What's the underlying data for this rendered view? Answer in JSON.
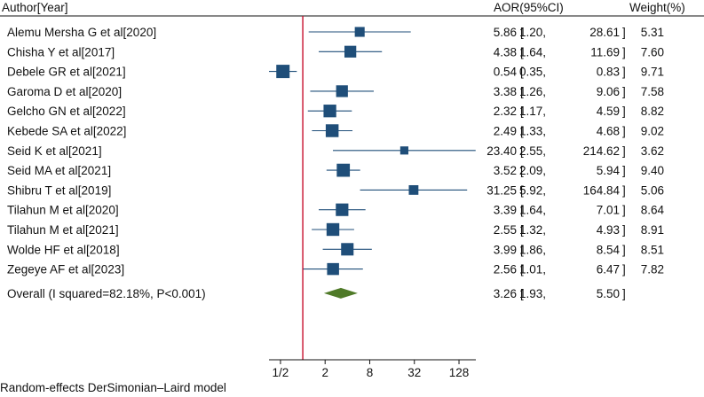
{
  "chart_data": {
    "type": "forest",
    "title": "",
    "headers": {
      "study": "Author[Year]",
      "effect": "AOR(95%CI)",
      "weight": "Weight(%)"
    },
    "x_scale": "log2",
    "xlim": [
      0.35,
      216
    ],
    "null_line": 1.0,
    "x_ticks": [
      {
        "value": 0.5,
        "label": "1/2"
      },
      {
        "value": 2,
        "label": "2"
      },
      {
        "value": 8,
        "label": "8"
      },
      {
        "value": 32,
        "label": "32"
      },
      {
        "value": 128,
        "label": "128"
      }
    ],
    "studies": [
      {
        "label": "Alemu Mersha G et al[2020]",
        "est": 5.86,
        "lo": 1.2,
        "hi": 28.61,
        "weight": 5.31,
        "est_txt": "5.86",
        "lo_txt": "1.20",
        "hi_txt": "28.61",
        "w_txt": "5.31"
      },
      {
        "label": "Chisha Y et al[2017]",
        "est": 4.38,
        "lo": 1.64,
        "hi": 11.69,
        "weight": 7.6,
        "est_txt": "4.38",
        "lo_txt": "1.64",
        "hi_txt": "11.69",
        "w_txt": "7.60"
      },
      {
        "label": "Debele GR et al[2021]",
        "est": 0.54,
        "lo": 0.35,
        "hi": 0.83,
        "weight": 9.71,
        "est_txt": "0.54",
        "lo_txt": "0.35",
        "hi_txt": "0.83",
        "w_txt": "9.71"
      },
      {
        "label": "Garoma D et al[2020]",
        "est": 3.38,
        "lo": 1.26,
        "hi": 9.06,
        "weight": 7.58,
        "est_txt": "3.38",
        "lo_txt": "1.26",
        "hi_txt": "9.06",
        "w_txt": "7.58"
      },
      {
        "label": "Gelcho GN et al[2022]",
        "est": 2.32,
        "lo": 1.17,
        "hi": 4.59,
        "weight": 8.82,
        "est_txt": "2.32",
        "lo_txt": "1.17",
        "hi_txt": "4.59",
        "w_txt": "8.82"
      },
      {
        "label": "Kebede SA et al[2022]",
        "est": 2.49,
        "lo": 1.33,
        "hi": 4.68,
        "weight": 9.02,
        "est_txt": "2.49",
        "lo_txt": "1.33",
        "hi_txt": "4.68",
        "w_txt": "9.02"
      },
      {
        "label": "Seid K et al[2021]",
        "est": 23.4,
        "lo": 2.55,
        "hi": 214.62,
        "weight": 3.62,
        "est_txt": "23.40",
        "lo_txt": "2.55",
        "hi_txt": "214.62",
        "w_txt": "3.62"
      },
      {
        "label": "Seid MA et al[2021]",
        "est": 3.52,
        "lo": 2.09,
        "hi": 5.94,
        "weight": 9.4,
        "est_txt": "3.52",
        "lo_txt": "2.09",
        "hi_txt": "5.94",
        "w_txt": "9.40"
      },
      {
        "label": "Shibru T et al[2019]",
        "est": 31.25,
        "lo": 5.92,
        "hi": 164.84,
        "weight": 5.06,
        "est_txt": "31.25",
        "lo_txt": "5.92",
        "hi_txt": "164.84",
        "w_txt": "5.06"
      },
      {
        "label": "Tilahun M et al[2020]",
        "est": 3.39,
        "lo": 1.64,
        "hi": 7.01,
        "weight": 8.64,
        "est_txt": "3.39",
        "lo_txt": "1.64",
        "hi_txt": "7.01",
        "w_txt": "8.64"
      },
      {
        "label": "Tilahun M et al[2021]",
        "est": 2.55,
        "lo": 1.32,
        "hi": 4.93,
        "weight": 8.91,
        "est_txt": "2.55",
        "lo_txt": "1.32",
        "hi_txt": "4.93",
        "w_txt": "8.91"
      },
      {
        "label": "Wolde HF et al[2018]",
        "est": 3.99,
        "lo": 1.86,
        "hi": 8.54,
        "weight": 8.51,
        "est_txt": "3.99",
        "lo_txt": "1.86",
        "hi_txt": "8.54",
        "w_txt": "8.51"
      },
      {
        "label": "Zegeye AF et al[2023]",
        "est": 2.56,
        "lo": 1.01,
        "hi": 6.47,
        "weight": 7.82,
        "est_txt": "2.56",
        "lo_txt": "1.01",
        "hi_txt": "6.47",
        "w_txt": "7.82"
      }
    ],
    "overall": {
      "label": "Overall (I squared=82.18%, P<0.001)",
      "est": 3.26,
      "lo": 1.93,
      "hi": 5.5,
      "est_txt": "3.26",
      "lo_txt": "1.93",
      "hi_txt": "5.50"
    },
    "colors": {
      "marker": "#1f4e79",
      "ci_line": "#1f4e79",
      "diamond": "#4f7a28",
      "null_line": "#c8102e",
      "axis": "#111111"
    },
    "footnote": "Random-effects DerSimonian–Laird model"
  }
}
